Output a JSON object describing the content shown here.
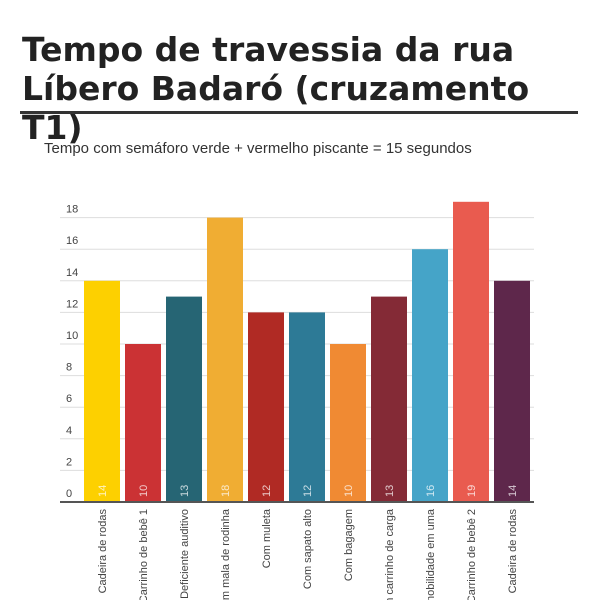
{
  "title_line1": "Tempo de travessia da rua",
  "title_line2": "Líbero Badaró (cruzamento T1)",
  "subtitle": "Tempo com semáforo verde + vermelho piscante = 15 segundos",
  "chart_data": {
    "type": "bar",
    "title": "Tempo de travessia da rua Líbero Badaró (cruzamento T1)",
    "subtitle": "Tempo com semáforo verde + vermelho piscante = 15 segundos",
    "categories": [
      "Cadeira de rodas",
      "Carrinho de bebê 1",
      "Deficiente auditivo",
      "m mala de rodinha",
      "Com muleta",
      "Com sapato alto",
      "Com bagagem",
      "n carrinho de carga",
      "nobilidade em uma",
      "Carrinho de bebê 2",
      "Cadeira de rodas"
    ],
    "values": [
      14,
      10,
      13,
      18,
      12,
      12,
      10,
      13,
      16,
      19,
      14
    ],
    "colors": [
      "#fdd000",
      "#cb3234",
      "#266574",
      "#f0ad33",
      "#b02a24",
      "#2d7a96",
      "#f08a33",
      "#842a36",
      "#45a4c8",
      "#e95b4f",
      "#5e274b"
    ],
    "yticks": [
      0,
      2,
      4,
      6,
      8,
      10,
      12,
      14,
      16,
      18
    ],
    "ylim": [
      0,
      19
    ],
    "grid": true,
    "xlabel": "",
    "ylabel": ""
  }
}
